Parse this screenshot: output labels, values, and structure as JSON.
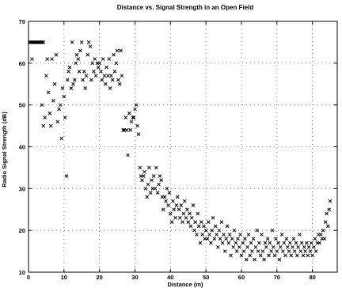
{
  "chart_data": {
    "type": "scatter",
    "title": "Distance vs. Signal Strength in an Open Field",
    "xlabel": "Distance (m)",
    "ylabel": "Radio Signal Strength (dB)",
    "xlim": [
      0,
      87
    ],
    "ylim": [
      10,
      70
    ],
    "xticks": [
      0,
      10,
      20,
      30,
      40,
      50,
      60,
      70,
      80
    ],
    "yticks": [
      10,
      20,
      30,
      40,
      50,
      60,
      70
    ],
    "grid": true,
    "marker": "x",
    "marker_color": "#000000",
    "points": [
      [
        0.3,
        65
      ],
      [
        0.6,
        65
      ],
      [
        0.9,
        65
      ],
      [
        1.2,
        65
      ],
      [
        1.5,
        65
      ],
      [
        1.8,
        65
      ],
      [
        2.1,
        65
      ],
      [
        2.4,
        65
      ],
      [
        2.7,
        65
      ],
      [
        3,
        65
      ],
      [
        3.3,
        65
      ],
      [
        3.6,
        65
      ],
      [
        3.9,
        65
      ],
      [
        4.2,
        65
      ],
      [
        1,
        61
      ],
      [
        3.8,
        50
      ],
      [
        4.2,
        45
      ],
      [
        4.6,
        47
      ],
      [
        5,
        57
      ],
      [
        5.3,
        61
      ],
      [
        5.6,
        53
      ],
      [
        6,
        48
      ],
      [
        6.3,
        45
      ],
      [
        6.6,
        61
      ],
      [
        7,
        51
      ],
      [
        7.4,
        55
      ],
      [
        7.8,
        62
      ],
      [
        8.2,
        46
      ],
      [
        8.6,
        49
      ],
      [
        9,
        50
      ],
      [
        9.3,
        42
      ],
      [
        9.6,
        54
      ],
      [
        10,
        52
      ],
      [
        10.3,
        47
      ],
      [
        10.7,
        33
      ],
      [
        11,
        56
      ],
      [
        11.3,
        58
      ],
      [
        11.6,
        59
      ],
      [
        12,
        54
      ],
      [
        12.3,
        65
      ],
      [
        12.6,
        55
      ],
      [
        13,
        56
      ],
      [
        13.3,
        60
      ],
      [
        13.6,
        62
      ],
      [
        14,
        61
      ],
      [
        14.3,
        58
      ],
      [
        14.6,
        63
      ],
      [
        15,
        65
      ],
      [
        15.3,
        56
      ],
      [
        15.7,
        58
      ],
      [
        16,
        54
      ],
      [
        16.3,
        57
      ],
      [
        16.7,
        62
      ],
      [
        17,
        65
      ],
      [
        17.4,
        64
      ],
      [
        17.7,
        56
      ],
      [
        18,
        60
      ],
      [
        18.4,
        58
      ],
      [
        18.7,
        61
      ],
      [
        19,
        57
      ],
      [
        19.4,
        60
      ],
      [
        19.7,
        59
      ],
      [
        20,
        60
      ],
      [
        20.4,
        58
      ],
      [
        20.7,
        56
      ],
      [
        21,
        61
      ],
      [
        21.4,
        57
      ],
      [
        21.7,
        55
      ],
      [
        22,
        59
      ],
      [
        22.4,
        57
      ],
      [
        22.7,
        61
      ],
      [
        23,
        54
      ],
      [
        23.3,
        57
      ],
      [
        23.7,
        56
      ],
      [
        24,
        62
      ],
      [
        24.3,
        58
      ],
      [
        24.7,
        60
      ],
      [
        25,
        63
      ],
      [
        25.3,
        56
      ],
      [
        25.7,
        55
      ],
      [
        26,
        63
      ],
      [
        26.3,
        57
      ],
      [
        26.7,
        44
      ],
      [
        27,
        44
      ],
      [
        27.4,
        47
      ],
      [
        27.7,
        44
      ],
      [
        28,
        38
      ],
      [
        28.4,
        48
      ],
      [
        28.7,
        44
      ],
      [
        29,
        46
      ],
      [
        29.4,
        47
      ],
      [
        29.7,
        47
      ],
      [
        30,
        49
      ],
      [
        30.4,
        50
      ],
      [
        30.7,
        45
      ],
      [
        31,
        43
      ],
      [
        31.4,
        35
      ],
      [
        31.7,
        33
      ],
      [
        32,
        32
      ],
      [
        32.4,
        33
      ],
      [
        32.7,
        34
      ],
      [
        33,
        30
      ],
      [
        33.4,
        28
      ],
      [
        33.7,
        31
      ],
      [
        34,
        35
      ],
      [
        34.4,
        29
      ],
      [
        34.7,
        32
      ],
      [
        35,
        30
      ],
      [
        35.3,
        33
      ],
      [
        35.7,
        30
      ],
      [
        36,
        35
      ],
      [
        36.4,
        29
      ],
      [
        36.7,
        31
      ],
      [
        37,
        33
      ],
      [
        37.4,
        32
      ],
      [
        37.7,
        28
      ],
      [
        38,
        25
      ],
      [
        38.4,
        28
      ],
      [
        38.7,
        27
      ],
      [
        39,
        30
      ],
      [
        39.4,
        26
      ],
      [
        39.7,
        29
      ],
      [
        40,
        24
      ],
      [
        40.4,
        22
      ],
      [
        40.7,
        27
      ],
      [
        41,
        25
      ],
      [
        41.4,
        23
      ],
      [
        41.7,
        26
      ],
      [
        42,
        28
      ],
      [
        42.4,
        25
      ],
      [
        42.7,
        23
      ],
      [
        43,
        26
      ],
      [
        43.4,
        22
      ],
      [
        43.7,
        24
      ],
      [
        44,
        27
      ],
      [
        44.4,
        23
      ],
      [
        44.7,
        25
      ],
      [
        45,
        22
      ],
      [
        45.4,
        24
      ],
      [
        45.7,
        21
      ],
      [
        46,
        23
      ],
      [
        46.4,
        26
      ],
      [
        46.7,
        20
      ],
      [
        47,
        22
      ],
      [
        47.4,
        19
      ],
      [
        47.7,
        24
      ],
      [
        48,
        21
      ],
      [
        48.4,
        17
      ],
      [
        48.7,
        22
      ],
      [
        49,
        19
      ],
      [
        49.4,
        21
      ],
      [
        49.7,
        18
      ],
      [
        50,
        20
      ],
      [
        50.4,
        18
      ],
      [
        50.7,
        22
      ],
      [
        51,
        19
      ],
      [
        51.4,
        17
      ],
      [
        51.7,
        20
      ],
      [
        52,
        23
      ],
      [
        52.4,
        18
      ],
      [
        52.7,
        21
      ],
      [
        53,
        19
      ],
      [
        53.4,
        16
      ],
      [
        53.7,
        20
      ],
      [
        54,
        18
      ],
      [
        54.4,
        22
      ],
      [
        54.7,
        17
      ],
      [
        55,
        19
      ],
      [
        55.4,
        15
      ],
      [
        55.7,
        18
      ],
      [
        56,
        21
      ],
      [
        56.4,
        17
      ],
      [
        56.7,
        19
      ],
      [
        57,
        14
      ],
      [
        57.4,
        18
      ],
      [
        57.7,
        16
      ],
      [
        58,
        20
      ],
      [
        58.4,
        17
      ],
      [
        58.7,
        15
      ],
      [
        59,
        18
      ],
      [
        59.4,
        16
      ],
      [
        59.7,
        19
      ],
      [
        60,
        14
      ],
      [
        60.4,
        17
      ],
      [
        60.7,
        15
      ],
      [
        61,
        18
      ],
      [
        61.4,
        13
      ],
      [
        61.7,
        16
      ],
      [
        62,
        19
      ],
      [
        62.4,
        14
      ],
      [
        62.7,
        17
      ],
      [
        63,
        15
      ],
      [
        63.4,
        18
      ],
      [
        63.7,
        13
      ],
      [
        64,
        16
      ],
      [
        64.4,
        20
      ],
      [
        64.7,
        15
      ],
      [
        65,
        17
      ],
      [
        65.4,
        14
      ],
      [
        65.7,
        19
      ],
      [
        66,
        15
      ],
      [
        66.4,
        13
      ],
      [
        66.7,
        17
      ],
      [
        67,
        16
      ],
      [
        67.4,
        18
      ],
      [
        67.7,
        14
      ],
      [
        68,
        17
      ],
      [
        68.4,
        15
      ],
      [
        68.7,
        20
      ],
      [
        69,
        16
      ],
      [
        69.4,
        14
      ],
      [
        69.7,
        18
      ],
      [
        70,
        15
      ],
      [
        70.4,
        17
      ],
      [
        70.7,
        13
      ],
      [
        71,
        16
      ],
      [
        71.4,
        19
      ],
      [
        71.7,
        15
      ],
      [
        72,
        17
      ],
      [
        72.4,
        14
      ],
      [
        72.7,
        18
      ],
      [
        73,
        16
      ],
      [
        73.4,
        15
      ],
      [
        73.7,
        17
      ],
      [
        74,
        14
      ],
      [
        74.4,
        16
      ],
      [
        74.7,
        18
      ],
      [
        75,
        15
      ],
      [
        75.4,
        17
      ],
      [
        75.7,
        14
      ],
      [
        76,
        16
      ],
      [
        76.4,
        19
      ],
      [
        76.7,
        15
      ],
      [
        77,
        17
      ],
      [
        77.4,
        14
      ],
      [
        77.7,
        16
      ],
      [
        78,
        15
      ],
      [
        78.4,
        17
      ],
      [
        78.7,
        14
      ],
      [
        79,
        16
      ],
      [
        79.4,
        15
      ],
      [
        79.7,
        17
      ],
      [
        80,
        14
      ],
      [
        80.4,
        16
      ],
      [
        80.7,
        18
      ],
      [
        81,
        15
      ],
      [
        81.4,
        17
      ],
      [
        81.7,
        19
      ],
      [
        82,
        17
      ],
      [
        82.4,
        19
      ],
      [
        82.7,
        18
      ],
      [
        83,
        20
      ],
      [
        83.4,
        18
      ],
      [
        83.7,
        22
      ],
      [
        84,
        24
      ],
      [
        84.4,
        21
      ],
      [
        84.7,
        25
      ],
      [
        85,
        27
      ]
    ]
  }
}
